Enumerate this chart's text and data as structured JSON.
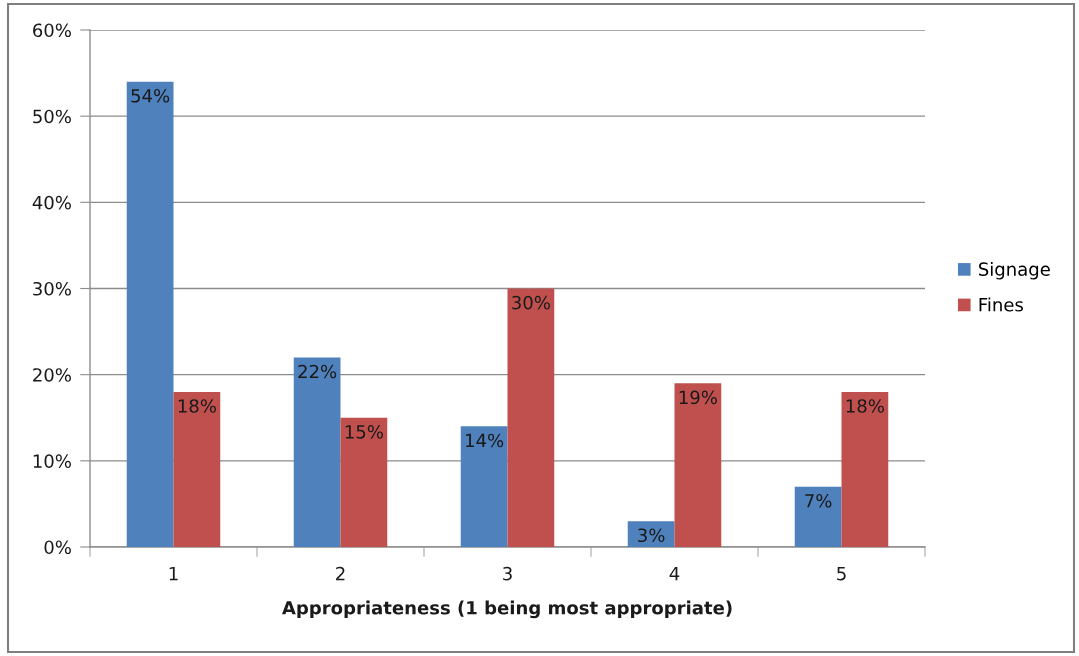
{
  "chart_data": {
    "type": "bar",
    "xlabel": "Appropriateness (1 being most appropriate)",
    "categories": [
      "1",
      "2",
      "3",
      "4",
      "5"
    ],
    "series": [
      {
        "name": "Signage",
        "color": "#4f81bd",
        "values": [
          54,
          22,
          14,
          3,
          7
        ],
        "value_labels": [
          "54%",
          "22%",
          "14%",
          "3%",
          "7%"
        ]
      },
      {
        "name": "Fines",
        "color": "#c0504d",
        "values": [
          18,
          15,
          30,
          19,
          18
        ],
        "value_labels": [
          "18%",
          "15%",
          "30%",
          "19%",
          "18%"
        ]
      }
    ],
    "ylim": [
      0,
      60
    ],
    "yticks": [
      {
        "value": 0,
        "label": "0%"
      },
      {
        "value": 10,
        "label": "10%"
      },
      {
        "value": 20,
        "label": "20%"
      },
      {
        "value": 30,
        "label": "30%"
      },
      {
        "value": 40,
        "label": "40%"
      },
      {
        "value": 50,
        "label": "50%"
      },
      {
        "value": 60,
        "label": "60%"
      }
    ],
    "grid": "y",
    "legend": "right"
  }
}
